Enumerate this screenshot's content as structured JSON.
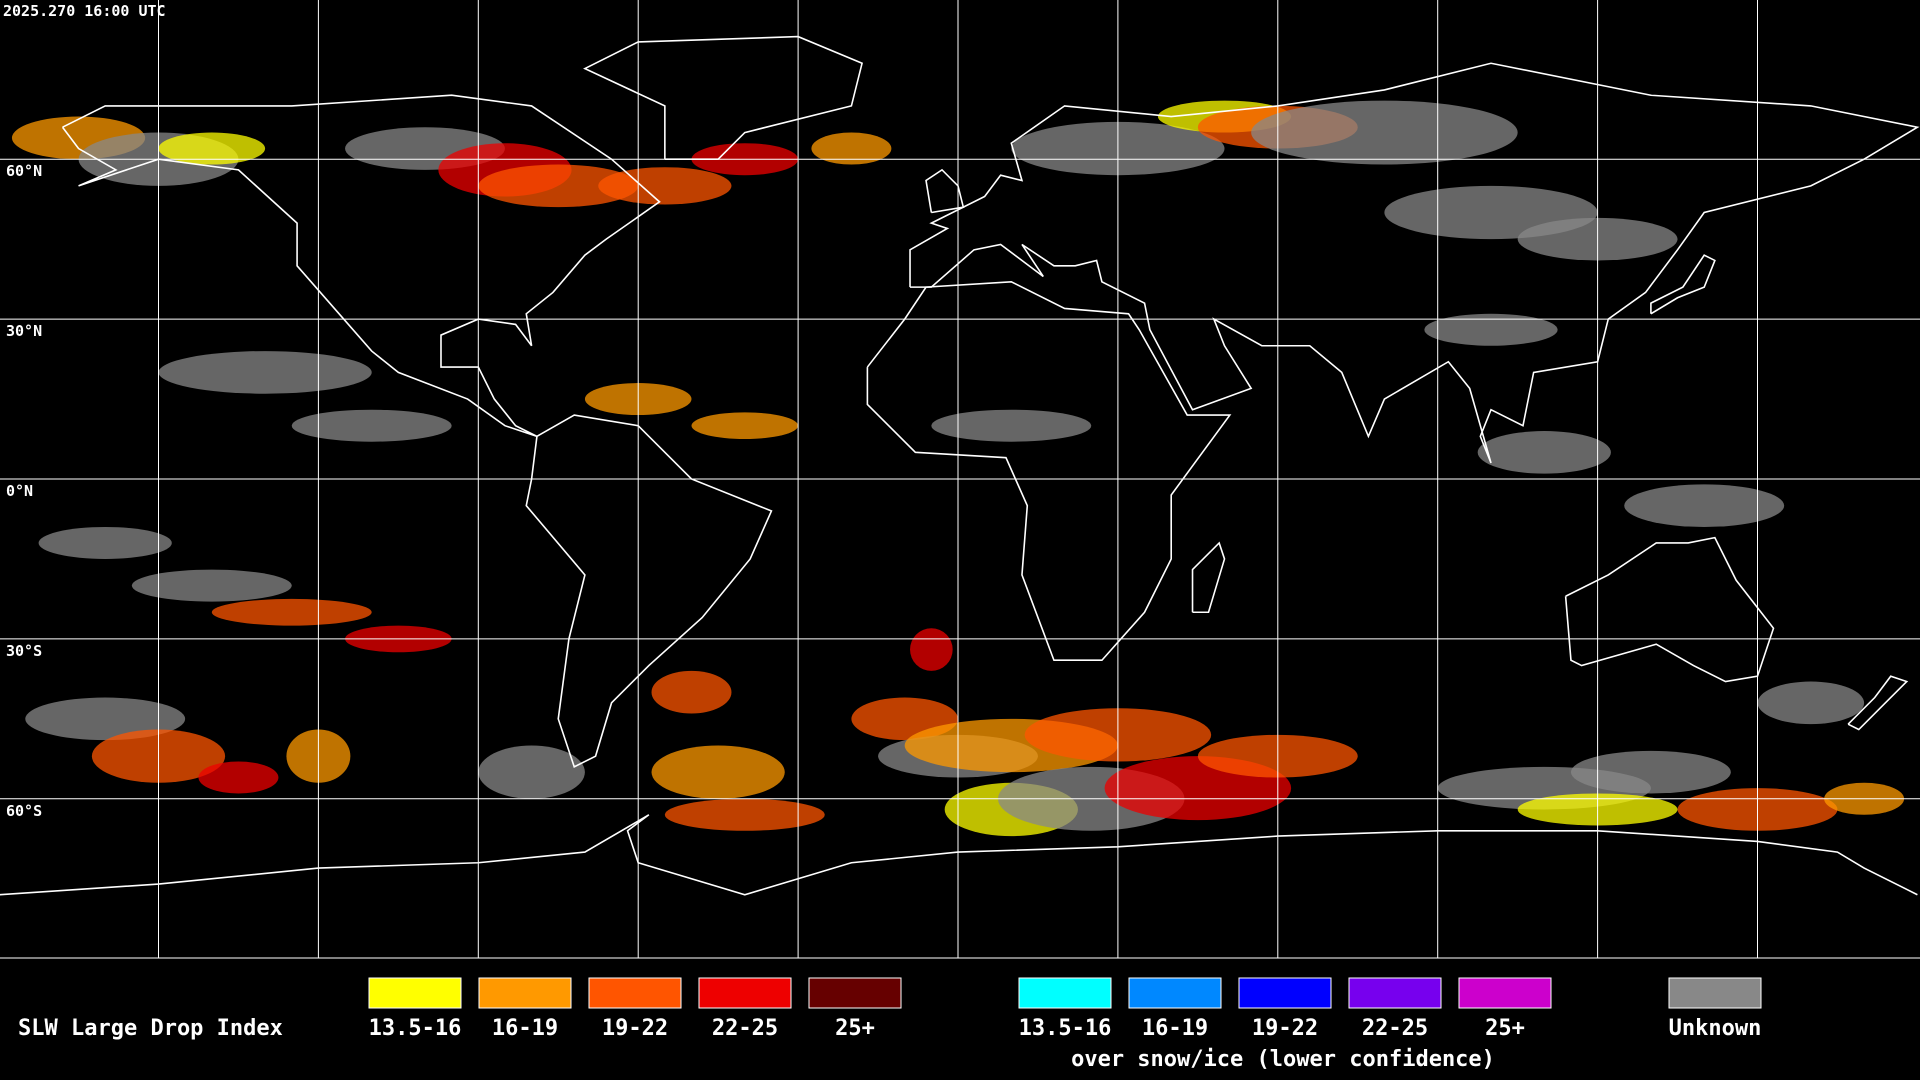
{
  "timestamp": "2025.270 16:00 UTC",
  "map": {
    "latitude_labels": [
      "60°N",
      "30°N",
      "0°N",
      "30°S",
      "60°S"
    ]
  },
  "legend": {
    "title": "SLW Large Drop Index",
    "items": [
      {
        "label": "13.5-16",
        "color": "#ffff00"
      },
      {
        "label": "16-19",
        "color": "#ff9900"
      },
      {
        "label": "19-22",
        "color": "#ff5500"
      },
      {
        "label": "22-25",
        "color": "#ee0000"
      },
      {
        "label": "25+",
        "color": "#660000"
      }
    ],
    "snow_ice_items": [
      {
        "label": "13.5-16",
        "color": "#00ffff"
      },
      {
        "label": "16-19",
        "color": "#0088ff"
      },
      {
        "label": "19-22",
        "color": "#0000ff"
      },
      {
        "label": "22-25",
        "color": "#7700ee"
      },
      {
        "label": "25+",
        "color": "#cc00cc"
      }
    ],
    "snow_ice_note": "over snow/ice (lower confidence)",
    "unknown": {
      "label": "Unknown",
      "color": "#888888"
    }
  }
}
